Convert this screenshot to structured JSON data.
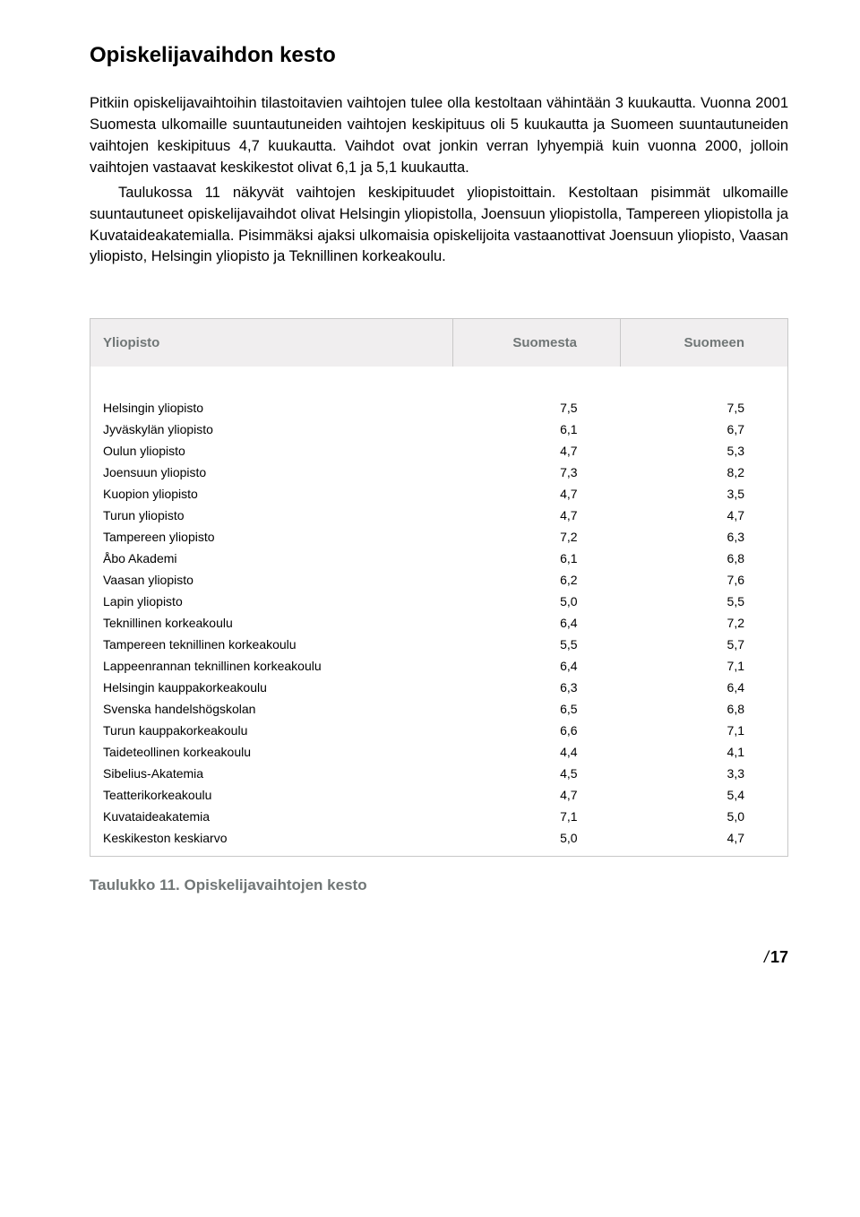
{
  "section_title": "Opiskelijavaihdon kesto",
  "paragraphs": [
    "Pitkiin opiskelijavaihtoihin tilastoitavien vaihtojen tulee olla kestoltaan vähintään 3 kuukautta. Vuonna 2001 Suomesta ulkomaille suuntautuneiden vaihtojen keskipituus oli 5 kuukautta ja Suomeen suuntautuneiden vaihtojen keskipituus 4,7 kuukautta. Vaihdot ovat jonkin verran lyhyempiä kuin vuonna 2000, jolloin vaihtojen vastaavat keskikestot olivat 6,1 ja 5,1 kuukautta.",
    "Taulukossa 11 näkyvät vaihtojen keskipituudet yliopistoittain. Kestoltaan pisimmät ulkomaille suuntautuneet opiskelijavaihdot olivat Helsingin yliopistolla, Joensuun yliopistolla, Tampereen yliopistolla ja Kuvataideakatemialla. Pisimmäksi ajaksi ulkomaisia opiskelijoita vastaanottivat Joensuun yliopisto, Vaasan yliopisto, Helsingin yliopisto ja Teknillinen korkeakoulu."
  ],
  "table": {
    "headers": [
      "Yliopisto",
      "Suomesta",
      "Suomeen"
    ],
    "rows": [
      [
        "Helsingin yliopisto",
        "7,5",
        "7,5"
      ],
      [
        "Jyväskylän yliopisto",
        "6,1",
        "6,7"
      ],
      [
        "Oulun yliopisto",
        "4,7",
        "5,3"
      ],
      [
        "Joensuun yliopisto",
        "7,3",
        "8,2"
      ],
      [
        "Kuopion yliopisto",
        "4,7",
        "3,5"
      ],
      [
        "Turun yliopisto",
        "4,7",
        "4,7"
      ],
      [
        "Tampereen yliopisto",
        "7,2",
        "6,3"
      ],
      [
        "Åbo Akademi",
        "6,1",
        "6,8"
      ],
      [
        "Vaasan yliopisto",
        "6,2",
        "7,6"
      ],
      [
        "Lapin yliopisto",
        "5,0",
        "5,5"
      ],
      [
        "Teknillinen korkeakoulu",
        "6,4",
        "7,2"
      ],
      [
        "Tampereen teknillinen korkeakoulu",
        "5,5",
        "5,7"
      ],
      [
        "Lappeenrannan teknillinen korkeakoulu",
        "6,4",
        "7,1"
      ],
      [
        "Helsingin kauppakorkeakoulu",
        "6,3",
        "6,4"
      ],
      [
        "Svenska handelshögskolan",
        "6,5",
        "6,8"
      ],
      [
        "Turun kauppakorkeakoulu",
        "6,6",
        "7,1"
      ],
      [
        "Taideteollinen korkeakoulu",
        "4,4",
        "4,1"
      ],
      [
        "Sibelius-Akatemia",
        "4,5",
        "3,3"
      ],
      [
        "Teatterikorkeakoulu",
        "4,7",
        "5,4"
      ],
      [
        "Kuvataideakatemia",
        "7,1",
        "5,0"
      ],
      [
        "Keskikeston keskiarvo",
        "5,0",
        "4,7"
      ]
    ],
    "col_widths": [
      "52%",
      "24%",
      "24%"
    ],
    "header_bg": "#f0eeef",
    "header_color": "#707676",
    "border_color": "#c8c8c8"
  },
  "caption": "Taulukko 11. Opiskelijavaihtojen kesto",
  "page_number": "17"
}
